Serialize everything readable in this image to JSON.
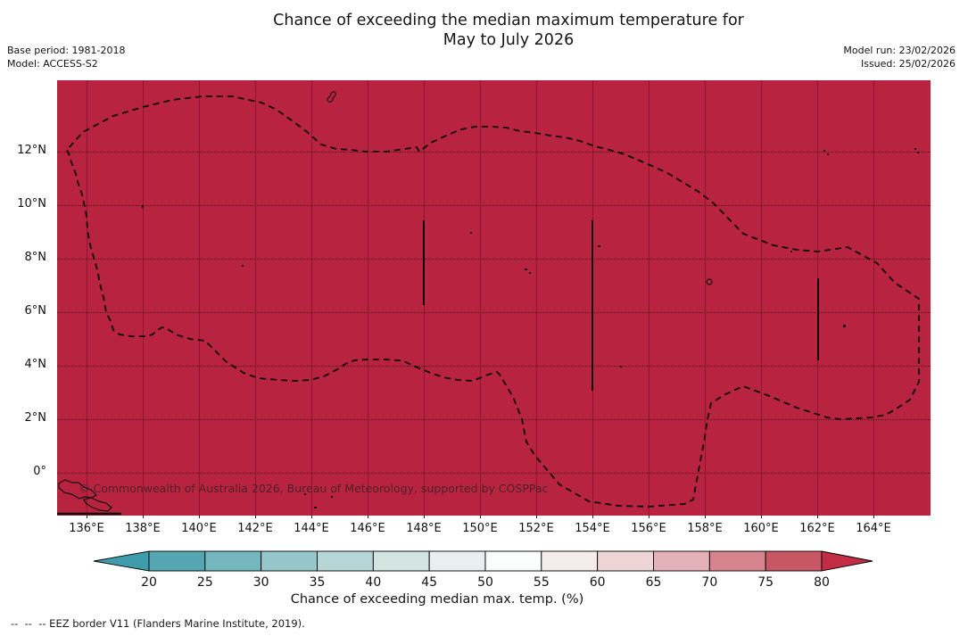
{
  "title": {
    "line1": "Chance of exceeding the median maximum temperature for",
    "line2": "May to July 2026"
  },
  "meta_left": {
    "base_period": "Base period: 1981-2018",
    "model": "Model: ACCESS-S2"
  },
  "meta_right": {
    "model_run": "Model run: 23/02/2026",
    "issued": "Issued: 25/02/2026"
  },
  "map": {
    "watermark": "© Commonwealth of Australia 2026, Bureau of Meteorology, supported by COSPPac",
    "fill_color": "#b82340",
    "y_ticks": [
      "12°N",
      "10°N",
      "8°N",
      "6°N",
      "4°N",
      "2°N",
      "0°"
    ],
    "x_ticks": [
      "136°E",
      "138°E",
      "140°E",
      "142°E",
      "144°E",
      "146°E",
      "148°E",
      "150°E",
      "152°E",
      "154°E",
      "156°E",
      "158°E",
      "160°E",
      "162°E",
      "164°E"
    ]
  },
  "colorbar": {
    "title": "Chance of exceeding median max. temp. (%)",
    "tick_labels": [
      "20",
      "25",
      "30",
      "35",
      "40",
      "45",
      "50",
      "55",
      "60",
      "65",
      "70",
      "75",
      "80"
    ],
    "segment_colors": [
      "#54a7b2",
      "#74b7bf",
      "#95c6ca",
      "#b5d5d6",
      "#d2e3e2",
      "#e8efee",
      "#fbfcfc",
      "#f5edec",
      "#eed6d7",
      "#e3b1b7",
      "#d6858f",
      "#c85664"
    ],
    "under_arrow_color": "#3f9dab",
    "over_arrow_color": "#c22c45"
  },
  "footer": {
    "eez_note": "--  --  -- EEZ border V11 (Flanders Marine Institute, 2019)."
  },
  "chart_data": {
    "type": "heatmap",
    "title": "Chance of exceeding the median maximum temperature for May to July 2026",
    "x_axis": {
      "tick_labels": [
        "136°E",
        "138°E",
        "140°E",
        "142°E",
        "144°E",
        "146°E",
        "148°E",
        "150°E",
        "152°E",
        "154°E",
        "156°E",
        "158°E",
        "160°E",
        "162°E",
        "164°E"
      ]
    },
    "y_axis": {
      "tick_labels": [
        "0°",
        "2°N",
        "4°N",
        "6°N",
        "8°N",
        "10°N",
        "12°N"
      ]
    },
    "colorbar": {
      "label": "Chance of exceeding median max. temp. (%)",
      "tick_values": [
        20,
        25,
        30,
        35,
        40,
        45,
        50,
        55,
        60,
        65,
        70,
        75,
        80
      ],
      "units": "%"
    },
    "field_summary": "Entire mapped region (Federated States of Micronesia EEZ area, ~135°E-166°E, ~2°S-14°N) is shaded in the greater-than-80% probability class; dashed outline shows the EEZ border.",
    "uniform_value": ">80"
  }
}
